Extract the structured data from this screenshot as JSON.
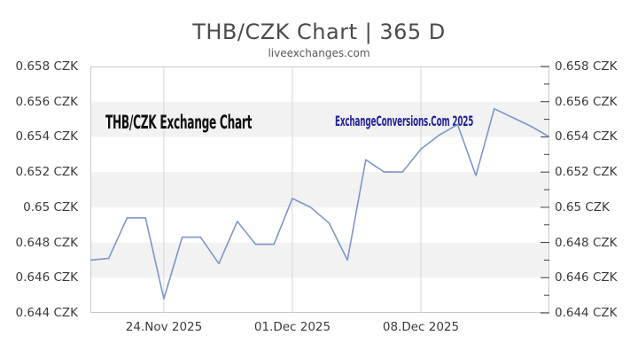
{
  "header": {
    "title": "THB/CZK Chart | 365 D",
    "subtitle": "liveexchanges.com"
  },
  "watermarks": {
    "chart_name": "THB/CZK Exchange Chart",
    "site": "ExchangeConversions.Com 2025"
  },
  "colors": {
    "line": "#7c96cb",
    "band": "#f2f2f2",
    "grid": "#d6d6d6",
    "border": "#c9c9c9",
    "tick": "#3c3c3c",
    "title_text": "#4a4a4a",
    "subtitle_text": "#585858",
    "watermark_black": "#101010",
    "watermark_navy": "#22229b"
  },
  "chart_data": {
    "type": "line",
    "title": "THB/CZK Chart | 365 D",
    "xlabel": "",
    "ylabel": "CZK",
    "ylim": [
      0.644,
      0.658
    ],
    "y_major_step": 0.002,
    "y_minor_step": 0.001,
    "grid": "horizontal-bands-and-vertical-lines",
    "legend_position": "none",
    "y_tick_labels": [
      "0.658 CZK",
      "0.656 CZK",
      "0.654 CZK",
      "0.652 CZK",
      "0.65 CZK",
      "0.648 CZK",
      "0.646 CZK",
      "0.644 CZK"
    ],
    "x_tick_labels": [
      {
        "index": 4,
        "label": "24.Nov 2025"
      },
      {
        "index": 11,
        "label": "01.Dec 2025"
      },
      {
        "index": 18,
        "label": "08.Dec 2025"
      }
    ],
    "series": [
      {
        "name": "THB/CZK",
        "dates": [
          "20.Nov 2025",
          "21.Nov 2025",
          "22.Nov 2025",
          "23.Nov 2025",
          "24.Nov 2025",
          "25.Nov 2025",
          "26.Nov 2025",
          "27.Nov 2025",
          "28.Nov 2025",
          "29.Nov 2025",
          "30.Nov 2025",
          "01.Dec 2025",
          "02.Dec 2025",
          "03.Dec 2025",
          "04.Dec 2025",
          "05.Dec 2025",
          "06.Dec 2025",
          "07.Dec 2025",
          "08.Dec 2025",
          "09.Dec 2025",
          "10.Dec 2025",
          "11.Dec 2025",
          "12.Dec 2025",
          "13.Dec 2025",
          "14.Dec 2025",
          "15.Dec 2025"
        ],
        "values": [
          0.647,
          0.6471,
          0.6494,
          0.6494,
          0.6448,
          0.6483,
          0.6483,
          0.6468,
          0.6492,
          0.6479,
          0.6479,
          0.6505,
          0.65,
          0.6491,
          0.647,
          0.6527,
          0.652,
          0.652,
          0.6533,
          0.6541,
          0.6547,
          0.6518,
          0.6556,
          0.6551,
          0.6546,
          0.654
        ]
      }
    ]
  }
}
